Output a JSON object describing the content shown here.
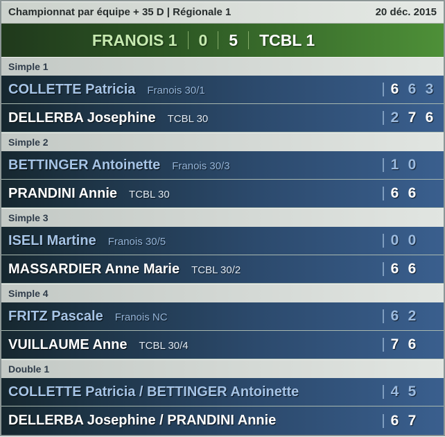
{
  "header": {
    "title": "Championnat par équipe + 35 D | Régionale 1",
    "date": "20 déc. 2015"
  },
  "scoreboard": {
    "home_team": "FRANOIS 1",
    "home_score": "0",
    "away_score": "5",
    "away_team": "TCBL 1"
  },
  "colors": {
    "green_dark": "#20391c",
    "green_light": "#4e9038",
    "home_team_text": "#c6eab0",
    "away_team_text": "#ffffff",
    "row_blue_dark": "#16272f",
    "row_blue_light": "#3a5f8e",
    "winner_text": "#ffffff",
    "loser_text": "#a6c4e6",
    "set_won": "#ffffff",
    "set_lost": "#9cbbdf",
    "section_grey": "#d2d8d4"
  },
  "matches": [
    {
      "label": "Simple 1",
      "rows": [
        {
          "name": "COLLETTE Patricia",
          "club": "Franois 30/1",
          "winner": false,
          "sets": [
            {
              "v": "6",
              "won": true
            },
            {
              "v": "6",
              "won": false
            },
            {
              "v": "3",
              "won": false
            }
          ]
        },
        {
          "name": "DELLERBA Josephine",
          "club": "TCBL 30",
          "winner": true,
          "sets": [
            {
              "v": "2",
              "won": false
            },
            {
              "v": "7",
              "won": true
            },
            {
              "v": "6",
              "won": true
            }
          ]
        }
      ]
    },
    {
      "label": "Simple 2",
      "rows": [
        {
          "name": "BETTINGER Antoinette",
          "club": "Franois 30/3",
          "winner": false,
          "sets": [
            {
              "v": "1",
              "won": false
            },
            {
              "v": "0",
              "won": false
            }
          ]
        },
        {
          "name": "PRANDINI Annie",
          "club": "TCBL 30",
          "winner": true,
          "sets": [
            {
              "v": "6",
              "won": true
            },
            {
              "v": "6",
              "won": true
            }
          ]
        }
      ]
    },
    {
      "label": "Simple 3",
      "rows": [
        {
          "name": "ISELI Martine",
          "club": "Franois 30/5",
          "winner": false,
          "sets": [
            {
              "v": "0",
              "won": false
            },
            {
              "v": "0",
              "won": false
            }
          ]
        },
        {
          "name": "MASSARDIER Anne Marie",
          "club": "TCBL 30/2",
          "winner": true,
          "sets": [
            {
              "v": "6",
              "won": true
            },
            {
              "v": "6",
              "won": true
            }
          ]
        }
      ]
    },
    {
      "label": "Simple 4",
      "rows": [
        {
          "name": "FRITZ Pascale",
          "club": "Franois NC",
          "winner": false,
          "sets": [
            {
              "v": "6",
              "won": false
            },
            {
              "v": "2",
              "won": false
            }
          ]
        },
        {
          "name": "VUILLAUME Anne",
          "club": "TCBL 30/4",
          "winner": true,
          "sets": [
            {
              "v": "7",
              "won": true
            },
            {
              "v": "6",
              "won": true
            }
          ]
        }
      ]
    },
    {
      "label": "Double 1",
      "rows": [
        {
          "name": "COLLETTE Patricia / BETTINGER Antoinette",
          "club": "",
          "winner": false,
          "sets": [
            {
              "v": "4",
              "won": false
            },
            {
              "v": "5",
              "won": false
            }
          ]
        },
        {
          "name": "DELLERBA Josephine / PRANDINI Annie",
          "club": "",
          "winner": true,
          "sets": [
            {
              "v": "6",
              "won": true
            },
            {
              "v": "7",
              "won": true
            }
          ]
        }
      ]
    }
  ]
}
